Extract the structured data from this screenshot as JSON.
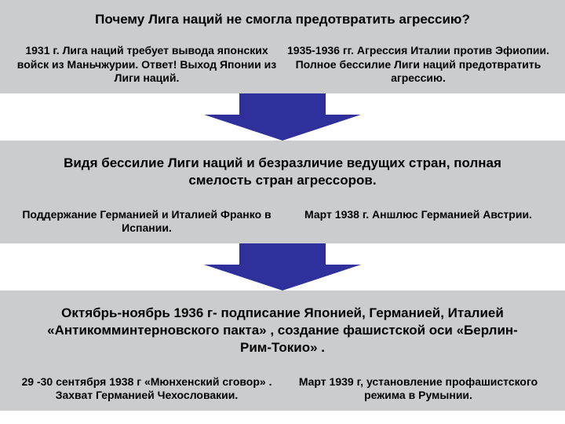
{
  "colors": {
    "band": "#cbccce",
    "arrow": "#30309c",
    "text": "#000000",
    "bg": "#ffffff"
  },
  "layout": {
    "arrow_stem_width": 110,
    "arrow_head_width": 200,
    "arrow_total_height": 60
  },
  "title": "Почему Лига наций не смогла предотвратить агрессию?",
  "row1": {
    "left": "1931 г. Лига наций требует вывода японских войск из Маньчжурии. Ответ! Выход Японии из Лиги наций.",
    "right": "1935-1936 гг. Агрессия Италии против Эфиопии. Полное бессилие Лиги наций предотвратить агрессию."
  },
  "mid1": "Видя бессилие Лиги наций и безразличие ведущих стран, полная смелость стран агрессоров.",
  "row2": {
    "left": "Поддержание Германией и Италией Франко в Испании.",
    "right": "Март 1938 г. Аншлюс Германией Австрии."
  },
  "mid2": "Октябрь-ноябрь 1936 г- подписание Японией, Германией, Италией «Антикомминтерновского пакта» , создание фашистской оси «Берлин-Рим-Токио» .",
  "row3": {
    "left": "29 -30 сентября 1938 г «Мюнхенский сговор» . Захват Германией Чехословакии.",
    "right": "Март 1939 г, установление профашистского режима в Румынии."
  }
}
